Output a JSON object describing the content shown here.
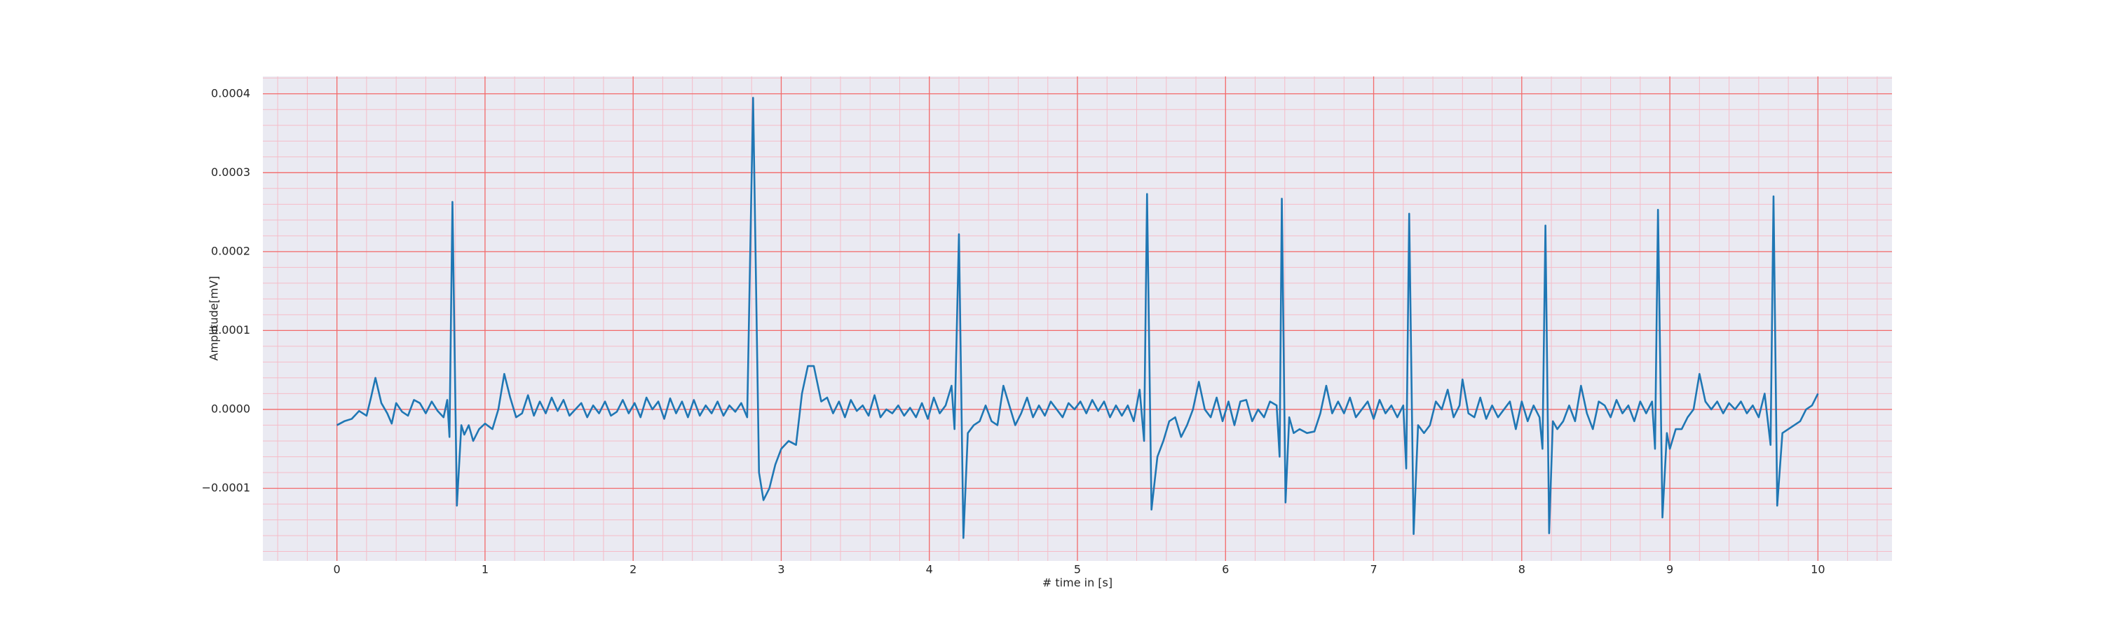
{
  "chart_data": {
    "type": "line",
    "xlabel": "# time in [s]",
    "ylabel": "Amplitude[mV]",
    "xlim": [
      -0.5,
      10.5
    ],
    "ylim": [
      -0.000192,
      0.000422
    ],
    "xticks": [
      0,
      1,
      2,
      3,
      4,
      5,
      6,
      7,
      8,
      9,
      10
    ],
    "yticks": [
      {
        "value": -0.0001,
        "label": "−0.0001"
      },
      {
        "value": 0,
        "label": "0.0000"
      },
      {
        "value": 0.0001,
        "label": "0.0001"
      },
      {
        "value": 0.0002,
        "label": "0.0002"
      },
      {
        "value": 0.0003,
        "label": "0.0003"
      },
      {
        "value": 0.0004,
        "label": "0.0004"
      }
    ],
    "grid": true,
    "grid_color": "#f26b6b",
    "minor_grid_color": "#f5bcc8",
    "xminor": 0.2,
    "yminor": 2e-05,
    "background": "#eaeaf2",
    "series": [
      {
        "color": "#1f77b4",
        "x": [
          0,
          0.05,
          0.1,
          0.15,
          0.2,
          0.23,
          0.26,
          0.3,
          0.34,
          0.37,
          0.4,
          0.44,
          0.48,
          0.52,
          0.56,
          0.6,
          0.64,
          0.68,
          0.72,
          0.745,
          0.76,
          0.78,
          0.81,
          0.84,
          0.86,
          0.89,
          0.92,
          0.96,
          1.0,
          1.05,
          1.09,
          1.13,
          1.17,
          1.21,
          1.25,
          1.29,
          1.33,
          1.37,
          1.41,
          1.45,
          1.49,
          1.53,
          1.57,
          1.61,
          1.65,
          1.69,
          1.73,
          1.77,
          1.81,
          1.85,
          1.89,
          1.93,
          1.97,
          2.01,
          2.05,
          2.09,
          2.13,
          2.17,
          2.21,
          2.25,
          2.29,
          2.33,
          2.37,
          2.41,
          2.45,
          2.49,
          2.53,
          2.57,
          2.61,
          2.65,
          2.69,
          2.73,
          2.77,
          2.81,
          2.85,
          2.88,
          2.92,
          2.96,
          3.0,
          3.05,
          3.1,
          3.14,
          3.18,
          3.22,
          3.27,
          3.31,
          3.35,
          3.39,
          3.43,
          3.47,
          3.51,
          3.55,
          3.59,
          3.63,
          3.67,
          3.71,
          3.75,
          3.79,
          3.83,
          3.87,
          3.91,
          3.95,
          3.99,
          4.03,
          4.07,
          4.11,
          4.15,
          4.17,
          4.2,
          4.23,
          4.26,
          4.3,
          4.34,
          4.38,
          4.42,
          4.46,
          4.5,
          4.54,
          4.58,
          4.62,
          4.66,
          4.7,
          4.74,
          4.78,
          4.82,
          4.86,
          4.9,
          4.94,
          4.98,
          5.02,
          5.06,
          5.1,
          5.14,
          5.18,
          5.22,
          5.26,
          5.3,
          5.34,
          5.38,
          5.42,
          5.45,
          5.47,
          5.5,
          5.54,
          5.58,
          5.62,
          5.66,
          5.7,
          5.74,
          5.78,
          5.82,
          5.86,
          5.9,
          5.94,
          5.98,
          6.02,
          6.06,
          6.1,
          6.14,
          6.18,
          6.22,
          6.26,
          6.3,
          6.345,
          6.365,
          6.38,
          6.405,
          6.43,
          6.46,
          6.5,
          6.55,
          6.6,
          6.64,
          6.68,
          6.72,
          6.76,
          6.8,
          6.84,
          6.88,
          6.92,
          6.96,
          7.0,
          7.04,
          7.08,
          7.12,
          7.16,
          7.2,
          7.22,
          7.24,
          7.27,
          7.3,
          7.34,
          7.38,
          7.42,
          7.46,
          7.5,
          7.54,
          7.58,
          7.6,
          7.64,
          7.68,
          7.72,
          7.76,
          7.8,
          7.84,
          7.88,
          7.92,
          7.96,
          8.0,
          8.04,
          8.08,
          8.12,
          8.14,
          8.16,
          8.185,
          8.21,
          8.24,
          8.28,
          8.32,
          8.36,
          8.4,
          8.44,
          8.48,
          8.52,
          8.56,
          8.6,
          8.64,
          8.68,
          8.72,
          8.76,
          8.8,
          8.84,
          8.88,
          8.9,
          8.92,
          8.95,
          8.98,
          9.0,
          9.04,
          9.08,
          9.12,
          9.16,
          9.2,
          9.24,
          9.28,
          9.32,
          9.36,
          9.4,
          9.44,
          9.48,
          9.52,
          9.56,
          9.6,
          9.64,
          9.68,
          9.7,
          9.725,
          9.76,
          9.8,
          9.84,
          9.88,
          9.92,
          9.96,
          10.0
        ],
        "values": [
          -2e-05,
          -1.5e-05,
          -1.2e-05,
          -2e-06,
          -8e-06,
          1.5e-05,
          4e-05,
          8e-06,
          -5e-06,
          -1.8e-05,
          8e-06,
          -3e-06,
          -8e-06,
          1.2e-05,
          8e-06,
          -5e-06,
          1e-05,
          -2e-06,
          -1e-05,
          1.2e-05,
          -3.5e-05,
          0.000263,
          -0.000122,
          -2e-05,
          -3.2e-05,
          -2e-05,
          -4e-05,
          -2.5e-05,
          -1.8e-05,
          -2.5e-05,
          0,
          4.5e-05,
          1.5e-05,
          -1e-05,
          -5e-06,
          1.8e-05,
          -8e-06,
          1e-05,
          -5e-06,
          1.5e-05,
          -2e-06,
          1.2e-05,
          -8e-06,
          0,
          8e-06,
          -1e-05,
          5e-06,
          -5e-06,
          1e-05,
          -8e-06,
          -3e-06,
          1.2e-05,
          -5e-06,
          8e-06,
          -1e-05,
          1.5e-05,
          0,
          1e-05,
          -1.2e-05,
          1.4e-05,
          -5e-06,
          1e-05,
          -1e-05,
          1.2e-05,
          -8e-06,
          5e-06,
          -5e-06,
          1e-05,
          -8e-06,
          5e-06,
          -3e-06,
          8e-06,
          -1e-05,
          0.000395,
          -8e-05,
          -0.000115,
          -0.0001,
          -7e-05,
          -5e-05,
          -4e-05,
          -4.5e-05,
          2e-05,
          5.5e-05,
          5.5e-05,
          1e-05,
          1.5e-05,
          -5e-06,
          1e-05,
          -1e-05,
          1.2e-05,
          -2e-06,
          5e-06,
          -8e-06,
          1.8e-05,
          -1e-05,
          0,
          -5e-06,
          5e-06,
          -8e-06,
          2e-06,
          -1e-05,
          8e-06,
          -1.2e-05,
          1.5e-05,
          -5e-06,
          5e-06,
          3e-05,
          -2.5e-05,
          0.000222,
          -0.000163,
          -3e-05,
          -2e-05,
          -1.5e-05,
          5e-06,
          -1.5e-05,
          -2e-05,
          3e-05,
          5e-06,
          -2e-05,
          -5e-06,
          1.5e-05,
          -1e-05,
          5e-06,
          -8e-06,
          1e-05,
          0,
          -1e-05,
          8e-06,
          0,
          1e-05,
          -5e-06,
          1.2e-05,
          -2e-06,
          1e-05,
          -1e-05,
          5e-06,
          -8e-06,
          5e-06,
          -1.5e-05,
          2.5e-05,
          -4e-05,
          0.000273,
          -0.000127,
          -6e-05,
          -4e-05,
          -1.5e-05,
          -1e-05,
          -3.5e-05,
          -2e-05,
          0,
          3.5e-05,
          0,
          -1e-05,
          1.5e-05,
          -1.5e-05,
          1e-05,
          -2e-05,
          1e-05,
          1.2e-05,
          -1.5e-05,
          0,
          -1e-05,
          1e-05,
          5e-06,
          -6e-05,
          0.000267,
          -0.000118,
          -1e-05,
          -3e-05,
          -2.5e-05,
          -3e-05,
          -2.8e-05,
          -5e-06,
          3e-05,
          -5e-06,
          1e-05,
          -5e-06,
          1.5e-05,
          -1e-05,
          0,
          1e-05,
          -1.2e-05,
          1.2e-05,
          -5e-06,
          5e-06,
          -1e-05,
          5e-06,
          -7.5e-05,
          0.000248,
          -0.000158,
          -2e-05,
          -3e-05,
          -2e-05,
          1e-05,
          0,
          2.5e-05,
          -1e-05,
          5e-06,
          3.8e-05,
          -5e-06,
          -1e-05,
          1.5e-05,
          -1.2e-05,
          5e-06,
          -1e-05,
          0,
          1e-05,
          -2.5e-05,
          1e-05,
          -1.5e-05,
          5e-06,
          -1e-05,
          -5e-05,
          0.000233,
          -0.000157,
          -1.5e-05,
          -2.5e-05,
          -1.5e-05,
          5e-06,
          -1.5e-05,
          3e-05,
          -5e-06,
          -2.5e-05,
          1e-05,
          5e-06,
          -1e-05,
          1.2e-05,
          -5e-06,
          5e-06,
          -1.5e-05,
          1e-05,
          -5e-06,
          1e-05,
          -5e-05,
          0.000253,
          -0.000137,
          -3e-05,
          -5e-05,
          -2.5e-05,
          -2.5e-05,
          -1e-05,
          0,
          4.5e-05,
          1e-05,
          0,
          1e-05,
          -5e-06,
          8e-06,
          0,
          1e-05,
          -5e-06,
          5e-06,
          -1e-05,
          2e-05,
          -4.5e-05,
          0.00027,
          -0.000122,
          -3e-05,
          -2.5e-05,
          -2e-05,
          -1.5e-05,
          0,
          5e-06,
          2e-05
        ]
      }
    ]
  }
}
